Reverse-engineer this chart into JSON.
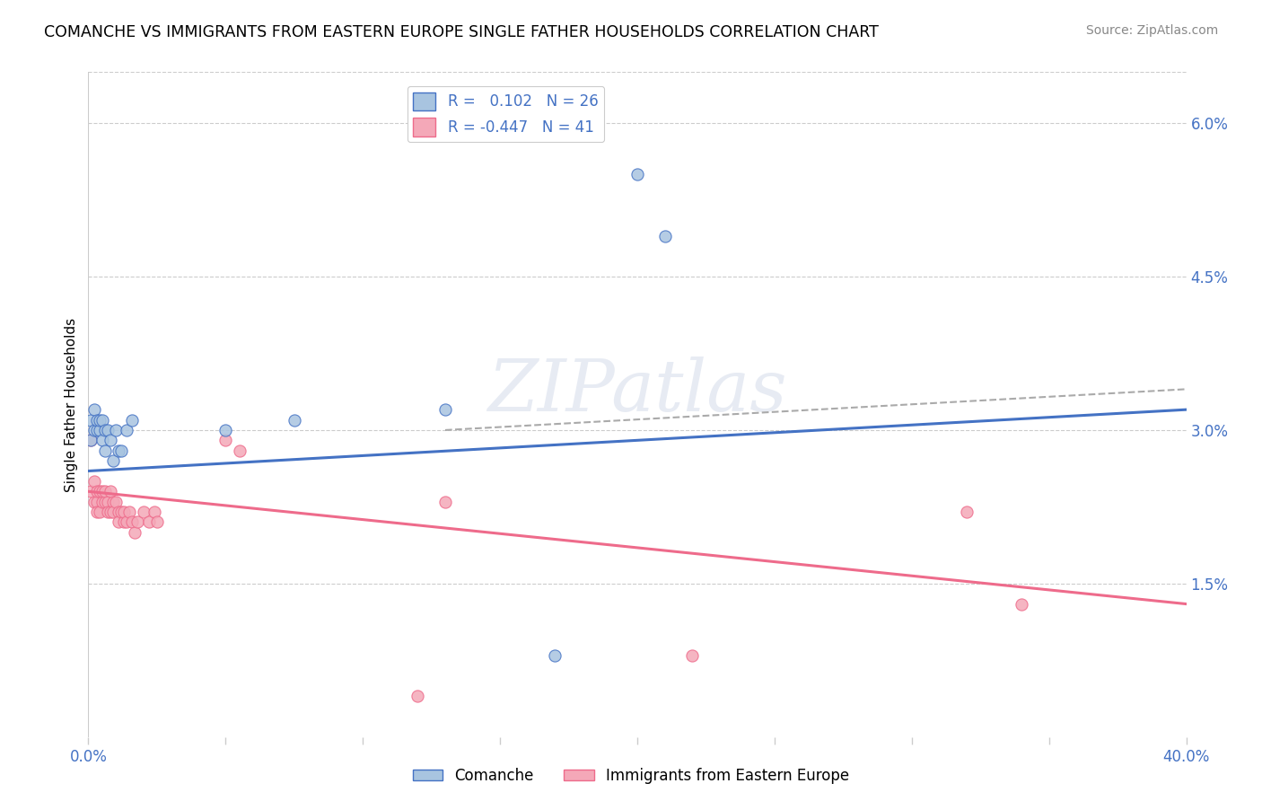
{
  "title": "COMANCHE VS IMMIGRANTS FROM EASTERN EUROPE SINGLE FATHER HOUSEHOLDS CORRELATION CHART",
  "source": "Source: ZipAtlas.com",
  "ylabel": "Single Father Households",
  "xlim": [
    0.0,
    0.4
  ],
  "ylim": [
    0.0,
    0.065
  ],
  "yticks": [
    0.015,
    0.03,
    0.045,
    0.06
  ],
  "ytick_labels": [
    "1.5%",
    "3.0%",
    "4.5%",
    "6.0%"
  ],
  "xticks": [
    0.0,
    0.05,
    0.1,
    0.15,
    0.2,
    0.25,
    0.3,
    0.35,
    0.4
  ],
  "xtick_labels_show": [
    "0.0%",
    "",
    "",
    "",
    "",
    "",
    "",
    "",
    "40.0%"
  ],
  "comanche_color": "#a8c4e0",
  "immigrant_color": "#f4a8b8",
  "comanche_line_color": "#4472c4",
  "immigrant_line_color": "#ee6b8b",
  "trend_dashed_color": "#aaaaaa",
  "watermark": "ZIPatlas",
  "legend_r_comanche": "R =   0.102",
  "legend_n_comanche": "N = 26",
  "legend_r_immigrant": "R = -0.447",
  "legend_n_immigrant": "N = 41",
  "comanche_trend_x0": 0.0,
  "comanche_trend_y0": 0.026,
  "comanche_trend_x1": 0.4,
  "comanche_trend_y1": 0.032,
  "comanche_trend_dashed_x0": 0.13,
  "comanche_trend_dashed_y0": 0.03,
  "comanche_trend_dashed_x1": 0.4,
  "comanche_trend_dashed_y1": 0.034,
  "immigrant_trend_x0": 0.0,
  "immigrant_trend_y0": 0.024,
  "immigrant_trend_x1": 0.4,
  "immigrant_trend_y1": 0.013,
  "comanche_x": [
    0.001,
    0.001,
    0.002,
    0.002,
    0.003,
    0.003,
    0.004,
    0.004,
    0.005,
    0.005,
    0.006,
    0.006,
    0.007,
    0.008,
    0.009,
    0.01,
    0.011,
    0.012,
    0.014,
    0.016,
    0.05,
    0.075,
    0.13,
    0.17,
    0.2,
    0.21
  ],
  "comanche_y": [
    0.029,
    0.031,
    0.03,
    0.032,
    0.03,
    0.031,
    0.03,
    0.031,
    0.029,
    0.031,
    0.028,
    0.03,
    0.03,
    0.029,
    0.027,
    0.03,
    0.028,
    0.028,
    0.03,
    0.031,
    0.03,
    0.031,
    0.032,
    0.008,
    0.055,
    0.049
  ],
  "immigrant_x": [
    0.001,
    0.001,
    0.002,
    0.002,
    0.003,
    0.003,
    0.003,
    0.004,
    0.004,
    0.005,
    0.005,
    0.006,
    0.006,
    0.007,
    0.007,
    0.008,
    0.008,
    0.009,
    0.009,
    0.01,
    0.011,
    0.011,
    0.012,
    0.013,
    0.013,
    0.014,
    0.015,
    0.016,
    0.017,
    0.018,
    0.02,
    0.022,
    0.024,
    0.025,
    0.05,
    0.055,
    0.12,
    0.13,
    0.22,
    0.32,
    0.34
  ],
  "immigrant_y": [
    0.029,
    0.024,
    0.023,
    0.025,
    0.023,
    0.024,
    0.022,
    0.024,
    0.022,
    0.023,
    0.024,
    0.023,
    0.024,
    0.023,
    0.022,
    0.024,
    0.022,
    0.023,
    0.022,
    0.023,
    0.022,
    0.021,
    0.022,
    0.021,
    0.022,
    0.021,
    0.022,
    0.021,
    0.02,
    0.021,
    0.022,
    0.021,
    0.022,
    0.021,
    0.029,
    0.028,
    0.004,
    0.023,
    0.008,
    0.022,
    0.013
  ]
}
